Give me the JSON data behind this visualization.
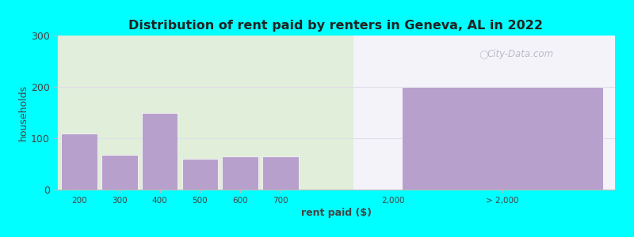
{
  "title": "Distribution of rent paid by renters in Geneva, AL in 2022",
  "xlabel": "rent paid ($)",
  "ylabel": "households",
  "background_outer": "#00FFFF",
  "bar_color": "#b8a0cc",
  "bar_edge_color": "#ffffff",
  "ylim": [
    0,
    300
  ],
  "yticks": [
    0,
    100,
    200,
    300
  ],
  "left_bars": {
    "labels": [
      "200",
      "300",
      "400",
      "500",
      "600",
      "700"
    ],
    "values": [
      110,
      68,
      150,
      60,
      65,
      65
    ]
  },
  "right_bar": {
    "label": "> 2,000",
    "value": 200
  },
  "xtick_mid": "2,000",
  "xtick_right": "> 2,000",
  "watermark": "City-Data.com",
  "bg_left_color_top": "#f0f5ee",
  "bg_left_color_bottom": "#d8ecd0",
  "bg_right_color": "#f8f8ff",
  "grid_color": "#e0dde8"
}
